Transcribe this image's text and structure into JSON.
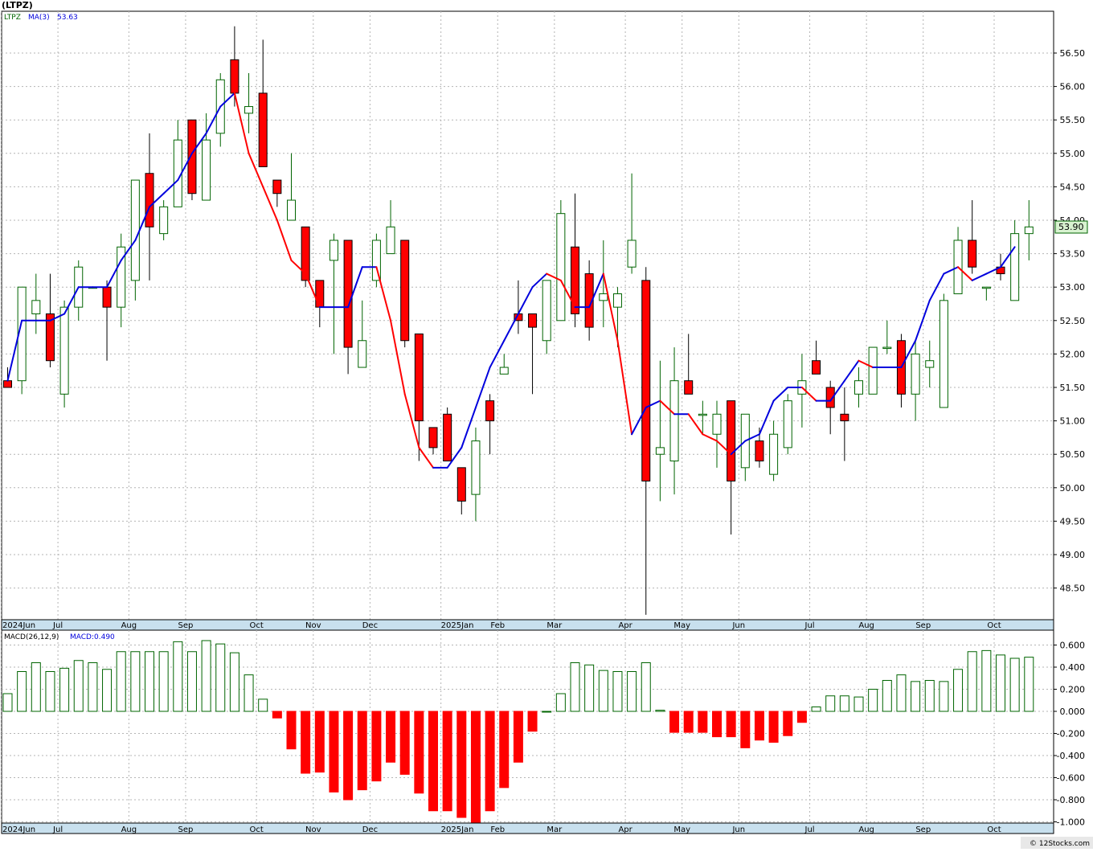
{
  "header": {
    "symbol_title": "(LTPZ)",
    "legend_symbol": "LTPZ",
    "legend_ma_label": "MA(3)",
    "legend_ma_value": "53.63",
    "macd_label": "MACD(26,12,9)",
    "macd_value": "MACD:0.490",
    "last_price_badge": "53.90"
  },
  "footer": {
    "copyright": "© 12Stocks.com"
  },
  "colors": {
    "up": "#006400",
    "down": "#ff0000",
    "ma_up": "#0000dd",
    "ma_down": "#ff0000",
    "axis_strip": "#c8e0ee",
    "grid": "#b4b4b4"
  },
  "chart_data": [
    {
      "type": "candlestick",
      "title": "(LTPZ)",
      "interval": "weekly",
      "ylim": [
        48.1,
        57.0
      ],
      "y_ticks": [
        48.5,
        49.0,
        49.5,
        50.0,
        50.5,
        51.0,
        51.5,
        52.0,
        52.5,
        53.0,
        53.5,
        54.0,
        54.5,
        55.0,
        55.5,
        56.0,
        56.5
      ],
      "x_labels": [
        {
          "label": "2024Jun",
          "week": 0
        },
        {
          "label": "Jul",
          "week": 4
        },
        {
          "label": "Aug",
          "week": 9
        },
        {
          "label": "Sep",
          "week": 13
        },
        {
          "label": "Oct",
          "week": 18
        },
        {
          "label": "Nov",
          "week": 22
        },
        {
          "label": "Dec",
          "week": 26
        },
        {
          "label": "2025Jan",
          "week": 31
        },
        {
          "label": "Feb",
          "week": 35
        },
        {
          "label": "Mar",
          "week": 39
        },
        {
          "label": "Apr",
          "week": 44
        },
        {
          "label": "May",
          "week": 48
        },
        {
          "label": "Jun",
          "week": 52
        },
        {
          "label": "Jul",
          "week": 57
        },
        {
          "label": "Aug",
          "week": 61
        },
        {
          "label": "Sep",
          "week": 65
        },
        {
          "label": "Oct",
          "week": 70
        }
      ],
      "ohlc": [
        [
          51.6,
          51.8,
          51.5,
          51.5
        ],
        [
          51.6,
          53.0,
          51.4,
          53.0
        ],
        [
          52.6,
          53.2,
          52.3,
          52.8
        ],
        [
          52.6,
          53.2,
          51.8,
          51.9
        ],
        [
          51.4,
          52.8,
          51.2,
          52.7
        ],
        [
          52.7,
          53.4,
          52.5,
          53.3
        ],
        [
          53.0,
          53.0,
          53.0,
          53.0
        ],
        [
          53.0,
          53.1,
          51.9,
          52.7
        ],
        [
          52.7,
          53.8,
          52.4,
          53.6
        ],
        [
          53.1,
          54.6,
          52.8,
          54.6
        ],
        [
          54.7,
          55.3,
          53.1,
          53.9
        ],
        [
          53.8,
          54.3,
          53.7,
          54.2
        ],
        [
          54.2,
          55.5,
          54.2,
          55.2
        ],
        [
          55.5,
          55.5,
          54.3,
          54.4
        ],
        [
          54.3,
          55.6,
          54.3,
          55.2
        ],
        [
          55.3,
          56.2,
          55.1,
          56.1
        ],
        [
          56.4,
          56.9,
          55.7,
          55.9
        ],
        [
          55.6,
          56.2,
          55.3,
          55.7
        ],
        [
          55.9,
          56.7,
          54.8,
          54.8
        ],
        [
          54.6,
          54.6,
          54.2,
          54.4
        ],
        [
          54.0,
          55.0,
          54.0,
          54.3
        ],
        [
          53.9,
          53.9,
          53.0,
          53.1
        ],
        [
          53.1,
          53.1,
          52.4,
          52.7
        ],
        [
          53.4,
          53.8,
          52.0,
          53.7
        ],
        [
          53.7,
          53.7,
          51.7,
          52.1
        ],
        [
          51.8,
          52.8,
          51.8,
          52.2
        ],
        [
          53.1,
          53.8,
          53.0,
          53.7
        ],
        [
          53.5,
          54.3,
          53.5,
          53.9
        ],
        [
          53.7,
          53.7,
          52.1,
          52.2
        ],
        [
          52.3,
          52.3,
          50.4,
          51.0
        ],
        [
          50.9,
          50.9,
          50.5,
          50.6
        ],
        [
          51.1,
          51.2,
          50.4,
          50.4
        ],
        [
          50.3,
          50.3,
          49.6,
          49.8
        ],
        [
          49.9,
          50.9,
          49.5,
          50.7
        ],
        [
          51.3,
          51.4,
          50.5,
          51.0
        ],
        [
          51.7,
          52.0,
          51.7,
          51.8
        ],
        [
          52.6,
          53.1,
          52.3,
          52.5
        ],
        [
          52.6,
          52.6,
          51.4,
          52.4
        ],
        [
          52.2,
          53.1,
          52.0,
          53.1
        ],
        [
          52.5,
          54.3,
          52.5,
          54.1
        ],
        [
          53.6,
          54.4,
          52.4,
          52.6
        ],
        [
          53.2,
          53.4,
          52.2,
          52.4
        ],
        [
          52.8,
          53.7,
          52.4,
          52.9
        ],
        [
          52.7,
          53.0,
          52.1,
          52.9
        ],
        [
          53.3,
          54.7,
          53.2,
          53.7
        ],
        [
          53.1,
          53.3,
          48.1,
          50.1
        ],
        [
          50.5,
          51.9,
          49.8,
          50.6
        ],
        [
          50.4,
          52.1,
          49.9,
          51.6
        ],
        [
          51.6,
          52.3,
          51.4,
          51.4
        ],
        [
          51.1,
          51.3,
          50.8,
          51.1
        ],
        [
          50.8,
          51.3,
          50.3,
          51.1
        ],
        [
          51.3,
          51.3,
          49.3,
          50.1
        ],
        [
          50.3,
          51.1,
          50.1,
          51.1
        ],
        [
          50.7,
          50.9,
          50.3,
          50.4
        ],
        [
          50.2,
          51.0,
          50.1,
          50.8
        ],
        [
          50.6,
          51.4,
          50.5,
          51.3
        ],
        [
          51.4,
          52.0,
          50.9,
          51.6
        ],
        [
          51.9,
          52.2,
          51.7,
          51.7
        ],
        [
          51.5,
          51.6,
          50.8,
          51.2
        ],
        [
          51.1,
          51.5,
          50.4,
          51.0
        ],
        [
          51.4,
          51.8,
          51.2,
          51.6
        ],
        [
          51.4,
          52.1,
          51.4,
          52.1
        ],
        [
          52.1,
          52.5,
          52.0,
          52.1
        ],
        [
          52.2,
          52.3,
          51.2,
          51.4
        ],
        [
          51.4,
          52.2,
          51.0,
          52.0
        ],
        [
          51.8,
          52.2,
          51.5,
          51.9
        ],
        [
          51.2,
          52.9,
          51.2,
          52.8
        ],
        [
          52.9,
          53.9,
          52.9,
          53.7
        ],
        [
          53.7,
          54.3,
          53.2,
          53.3
        ],
        [
          53.0,
          53.0,
          52.8,
          53.0
        ],
        [
          53.3,
          53.5,
          53.1,
          53.2
        ],
        [
          52.8,
          54.0,
          52.8,
          53.8
        ],
        [
          53.8,
          54.3,
          53.4,
          53.9
        ]
      ],
      "ma3": [
        51.6,
        52.5,
        52.5,
        52.5,
        52.6,
        53.0,
        53.0,
        53.0,
        53.4,
        53.7,
        54.2,
        54.4,
        54.6,
        55.0,
        55.3,
        55.7,
        55.9,
        55.0,
        54.5,
        54.0,
        53.4,
        53.2,
        52.7,
        52.7,
        52.7,
        53.3,
        53.3,
        52.5,
        51.4,
        50.6,
        50.3,
        50.3,
        50.6,
        51.2,
        51.8,
        52.2,
        52.6,
        53.0,
        53.2,
        53.1,
        52.7,
        52.7,
        53.2,
        52.2,
        50.8,
        51.2,
        51.3,
        51.1,
        51.1,
        50.8,
        50.7,
        50.5,
        50.7,
        50.8,
        51.3,
        51.5,
        51.5,
        51.3,
        51.3,
        51.6,
        51.9,
        51.8,
        51.8,
        51.8,
        52.2,
        52.8,
        53.2,
        53.3,
        53.1,
        53.2,
        53.3,
        53.6
      ],
      "ma3_label": "MA(3)",
      "ma3_last": 53.63,
      "last_close": 53.9
    },
    {
      "type": "bar",
      "title": "MACD(26,12,9)",
      "ylim": [
        -1.03,
        0.66
      ],
      "y_ticks": [
        -1.0,
        -0.8,
        -0.6,
        -0.4,
        -0.2,
        0.0,
        0.2,
        0.4,
        0.6
      ],
      "y_tick_labels": [
        "-1.000",
        "-0.800",
        "-0.600",
        "-0.400",
        "-0.200",
        "0.000",
        "0.200",
        "0.400",
        "0.600"
      ],
      "values": [
        0.16,
        0.36,
        0.44,
        0.36,
        0.39,
        0.46,
        0.44,
        0.38,
        0.54,
        0.54,
        0.54,
        0.54,
        0.63,
        0.54,
        0.64,
        0.61,
        0.53,
        0.33,
        0.11,
        -0.06,
        -0.34,
        -0.56,
        -0.55,
        -0.73,
        -0.8,
        -0.71,
        -0.63,
        -0.46,
        -0.57,
        -0.74,
        -0.9,
        -0.9,
        -0.96,
        -1.04,
        -0.9,
        -0.69,
        -0.46,
        -0.18,
        0.0,
        0.16,
        0.44,
        0.42,
        0.37,
        0.36,
        0.36,
        0.44,
        0.01,
        -0.19,
        -0.19,
        -0.19,
        -0.23,
        -0.23,
        -0.33,
        -0.26,
        -0.28,
        -0.22,
        -0.1,
        0.04,
        0.14,
        0.14,
        0.13,
        0.2,
        0.28,
        0.33,
        0.27,
        0.28,
        0.27,
        0.38,
        0.54,
        0.55,
        0.51,
        0.48,
        0.49
      ],
      "last_value": 0.49
    }
  ]
}
